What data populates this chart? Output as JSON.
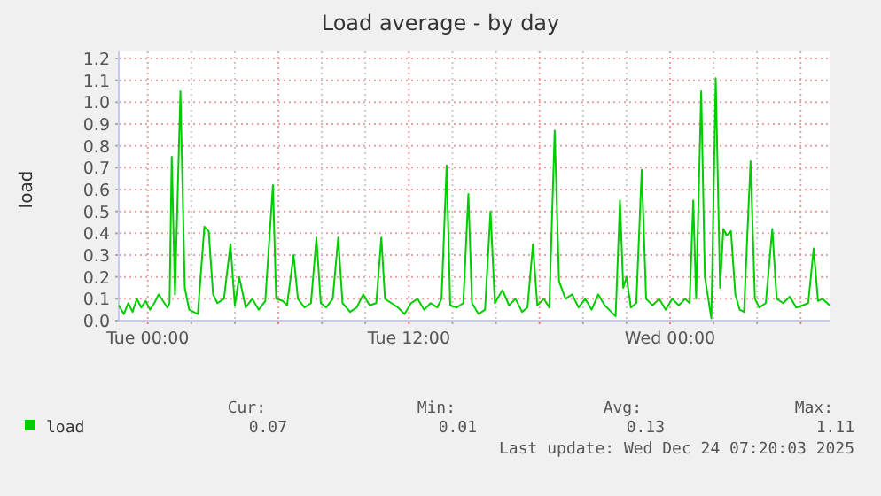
{
  "chart_data": {
    "type": "line",
    "title": "Load average - by day",
    "ylabel": "load",
    "xlim": [
      "2025-12-22T22:40",
      "2025-12-24T07:20"
    ],
    "xticks": [
      {
        "value": "2025-12-23T00:00",
        "label": "Tue 00:00"
      },
      {
        "value": "2025-12-23T02:00",
        "label": null
      },
      {
        "value": "2025-12-23T04:00",
        "label": null
      },
      {
        "value": "2025-12-23T06:00",
        "label": null
      },
      {
        "value": "2025-12-23T08:00",
        "label": null
      },
      {
        "value": "2025-12-23T10:00",
        "label": null
      },
      {
        "value": "2025-12-23T12:00",
        "label": "Tue 12:00"
      },
      {
        "value": "2025-12-23T14:00",
        "label": null
      },
      {
        "value": "2025-12-23T16:00",
        "label": null
      },
      {
        "value": "2025-12-23T18:00",
        "label": null
      },
      {
        "value": "2025-12-23T20:00",
        "label": null
      },
      {
        "value": "2025-12-23T22:00",
        "label": null
      },
      {
        "value": "2025-12-24T00:00",
        "label": "Wed 00:00"
      },
      {
        "value": "2025-12-24T02:00",
        "label": null
      },
      {
        "value": "2025-12-24T04:00",
        "label": null
      },
      {
        "value": "2025-12-24T06:00",
        "label": null
      }
    ],
    "ylim": [
      0,
      1.2
    ],
    "yticks": [
      {
        "value": 0,
        "label": "0.0"
      },
      0.1,
      0.2,
      0.3,
      0.4,
      0.5,
      0.6,
      0.7,
      0.8,
      0.9,
      {
        "value": 1,
        "label": "1.0"
      },
      1.1,
      1.2
    ],
    "grid": true,
    "legend": "bottom left",
    "marker": "none",
    "line_style": "solid",
    "series": [
      {
        "name": "load",
        "color": "#00cc00",
        "x": [
          "2025-12-22T22:40",
          "2025-12-22T22:54",
          "2025-12-22T23:06",
          "2025-12-22T23:18",
          "2025-12-22T23:30",
          "2025-12-22T23:42",
          "2025-12-22T23:54",
          "2025-12-23T00:06",
          "2025-12-23T00:18",
          "2025-12-23T00:30",
          "2025-12-23T00:42",
          "2025-12-23T00:54",
          "2025-12-23T01:00",
          "2025-12-23T01:06",
          "2025-12-23T01:15",
          "2025-12-23T01:30",
          "2025-12-23T01:42",
          "2025-12-23T01:54",
          "2025-12-23T02:06",
          "2025-12-23T02:18",
          "2025-12-23T02:36",
          "2025-12-23T02:48",
          "2025-12-23T03:00",
          "2025-12-23T03:12",
          "2025-12-23T03:30",
          "2025-12-23T03:48",
          "2025-12-23T04:00",
          "2025-12-23T04:12",
          "2025-12-23T04:30",
          "2025-12-23T04:48",
          "2025-12-23T05:06",
          "2025-12-23T05:24",
          "2025-12-23T05:45",
          "2025-12-23T05:54",
          "2025-12-23T06:12",
          "2025-12-23T06:24",
          "2025-12-23T06:42",
          "2025-12-23T06:54",
          "2025-12-23T07:12",
          "2025-12-23T07:30",
          "2025-12-23T07:45",
          "2025-12-23T07:57",
          "2025-12-23T08:12",
          "2025-12-23T08:30",
          "2025-12-23T08:45",
          "2025-12-23T08:57",
          "2025-12-23T09:18",
          "2025-12-23T09:36",
          "2025-12-23T09:54",
          "2025-12-23T10:12",
          "2025-12-23T10:30",
          "2025-12-23T10:44",
          "2025-12-23T10:54",
          "2025-12-23T11:12",
          "2025-12-23T11:30",
          "2025-12-23T11:48",
          "2025-12-23T12:06",
          "2025-12-23T12:24",
          "2025-12-23T12:42",
          "2025-12-23T13:00",
          "2025-12-23T13:18",
          "2025-12-23T13:30",
          "2025-12-23T13:44",
          "2025-12-23T13:54",
          "2025-12-23T14:12",
          "2025-12-23T14:30",
          "2025-12-23T14:44",
          "2025-12-23T14:54",
          "2025-12-23T15:12",
          "2025-12-23T15:30",
          "2025-12-23T15:45",
          "2025-12-23T15:57",
          "2025-12-23T16:18",
          "2025-12-23T16:36",
          "2025-12-23T16:54",
          "2025-12-23T17:12",
          "2025-12-23T17:27",
          "2025-12-23T17:42",
          "2025-12-23T17:54",
          "2025-12-23T18:12",
          "2025-12-23T18:27",
          "2025-12-23T18:42",
          "2025-12-23T18:54",
          "2025-12-23T19:12",
          "2025-12-23T19:30",
          "2025-12-23T19:48",
          "2025-12-23T20:06",
          "2025-12-23T20:24",
          "2025-12-23T20:42",
          "2025-12-23T21:00",
          "2025-12-23T21:18",
          "2025-12-23T21:30",
          "2025-12-23T21:42",
          "2025-12-23T21:51",
          "2025-12-23T22:00",
          "2025-12-23T22:12",
          "2025-12-23T22:27",
          "2025-12-23T22:42",
          "2025-12-23T22:54",
          "2025-12-23T23:12",
          "2025-12-23T23:30",
          "2025-12-23T23:48",
          "2025-12-24T00:06",
          "2025-12-24T00:24",
          "2025-12-24T00:42",
          "2025-12-24T00:54",
          "2025-12-24T01:04",
          "2025-12-24T01:12",
          "2025-12-24T01:26",
          "2025-12-24T01:36",
          "2025-12-24T01:54",
          "2025-12-24T02:06",
          "2025-12-24T02:18",
          "2025-12-24T02:27",
          "2025-12-24T02:36",
          "2025-12-24T02:48",
          "2025-12-24T03:00",
          "2025-12-24T03:12",
          "2025-12-24T03:24",
          "2025-12-24T03:42",
          "2025-12-24T03:54",
          "2025-12-24T04:06",
          "2025-12-24T04:24",
          "2025-12-24T04:42",
          "2025-12-24T04:54",
          "2025-12-24T05:12",
          "2025-12-24T05:30",
          "2025-12-24T05:48",
          "2025-12-24T06:06",
          "2025-12-24T06:21",
          "2025-12-24T06:36",
          "2025-12-24T06:48",
          "2025-12-24T07:00",
          "2025-12-24T07:20"
        ],
        "values": [
          0.07,
          0.03,
          0.08,
          0.04,
          0.1,
          0.06,
          0.09,
          0.05,
          0.08,
          0.12,
          0.09,
          0.06,
          0.08,
          0.75,
          0.12,
          1.05,
          0.15,
          0.05,
          0.04,
          0.03,
          0.43,
          0.41,
          0.12,
          0.08,
          0.1,
          0.35,
          0.07,
          0.2,
          0.06,
          0.1,
          0.05,
          0.09,
          0.62,
          0.1,
          0.09,
          0.07,
          0.3,
          0.1,
          0.06,
          0.08,
          0.38,
          0.08,
          0.06,
          0.1,
          0.38,
          0.08,
          0.04,
          0.06,
          0.12,
          0.07,
          0.08,
          0.38,
          0.1,
          0.08,
          0.06,
          0.03,
          0.08,
          0.1,
          0.05,
          0.08,
          0.06,
          0.1,
          0.71,
          0.07,
          0.06,
          0.08,
          0.58,
          0.08,
          0.03,
          0.05,
          0.5,
          0.08,
          0.14,
          0.07,
          0.1,
          0.04,
          0.06,
          0.35,
          0.07,
          0.1,
          0.06,
          0.87,
          0.18,
          0.1,
          0.12,
          0.06,
          0.1,
          0.05,
          0.12,
          0.07,
          0.04,
          0.02,
          0.55,
          0.15,
          0.2,
          0.06,
          0.08,
          0.69,
          0.1,
          0.07,
          0.1,
          0.05,
          0.1,
          0.07,
          0.1,
          0.08,
          0.55,
          0.1,
          1.05,
          0.2,
          0.01,
          1.11,
          0.15,
          0.42,
          0.39,
          0.41,
          0.12,
          0.05,
          0.04,
          0.73,
          0.1,
          0.06,
          0.08,
          0.42,
          0.1,
          0.08,
          0.11,
          0.06,
          0.07,
          0.08,
          0.33,
          0.09,
          0.1,
          0.07
        ]
      }
    ],
    "annotations": [
      "Cur:",
      "Min:",
      "Avg:",
      "Max:",
      "0.07",
      "0.01",
      "0.13",
      "1.11",
      "Last update: Wed Dec 24 07:20:03 2025"
    ]
  }
}
